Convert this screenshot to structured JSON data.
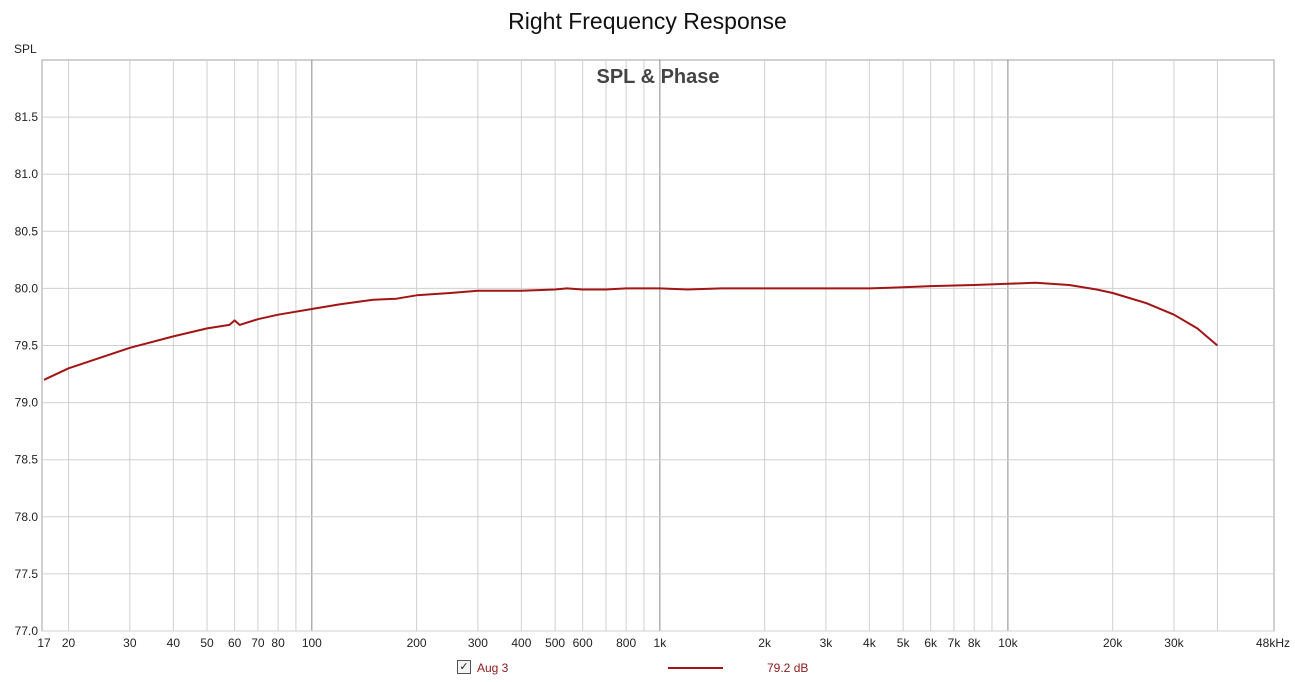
{
  "page_title": "Right Frequency Response",
  "y_unit": "SPL",
  "legend": {
    "checked": true,
    "check_glyph": "✓",
    "name": "Aug 3",
    "value_text": "79.2 dB"
  },
  "colors": {
    "trace": "#a31515",
    "grid_minor": "#d0d0d0",
    "grid_major": "#8a8a8a",
    "frame": "#a0a0a0"
  },
  "chart_data": {
    "type": "line",
    "title": "SPL & Phase",
    "x_scale": "log",
    "x_range_hz": [
      17,
      48000
    ],
    "y_range": [
      77.0,
      82.0
    ],
    "x_ticks": [
      {
        "hz": 17,
        "label": "17"
      },
      {
        "hz": 20,
        "label": "20"
      },
      {
        "hz": 30,
        "label": "30"
      },
      {
        "hz": 40,
        "label": "40"
      },
      {
        "hz": 50,
        "label": "50"
      },
      {
        "hz": 60,
        "label": "60"
      },
      {
        "hz": 70,
        "label": "70"
      },
      {
        "hz": 80,
        "label": "80"
      },
      {
        "hz": 100,
        "label": "100"
      },
      {
        "hz": 200,
        "label": "200"
      },
      {
        "hz": 300,
        "label": "300"
      },
      {
        "hz": 400,
        "label": "400"
      },
      {
        "hz": 500,
        "label": "500"
      },
      {
        "hz": 600,
        "label": "600"
      },
      {
        "hz": 800,
        "label": "800"
      },
      {
        "hz": 1000,
        "label": "1k"
      },
      {
        "hz": 2000,
        "label": "2k"
      },
      {
        "hz": 3000,
        "label": "3k"
      },
      {
        "hz": 4000,
        "label": "4k"
      },
      {
        "hz": 5000,
        "label": "5k"
      },
      {
        "hz": 6000,
        "label": "6k"
      },
      {
        "hz": 7000,
        "label": "7k"
      },
      {
        "hz": 8000,
        "label": "8k"
      },
      {
        "hz": 10000,
        "label": "10k"
      },
      {
        "hz": 20000,
        "label": "20k"
      },
      {
        "hz": 30000,
        "label": "30k"
      },
      {
        "hz": 48000,
        "label": "48kHz"
      }
    ],
    "y_ticks": [
      "77.0",
      "77.5",
      "78.0",
      "78.5",
      "79.0",
      "79.5",
      "80.0",
      "80.5",
      "81.0",
      "81.5"
    ],
    "major_gridlines_hz": [
      100,
      1000,
      10000
    ],
    "grid": true,
    "series": [
      {
        "name": "Aug 3",
        "color": "#a31515",
        "x": [
          17,
          20,
          30,
          40,
          50,
          58,
          60,
          62,
          70,
          80,
          100,
          120,
          150,
          175,
          200,
          250,
          300,
          400,
          500,
          540,
          600,
          650,
          700,
          800,
          900,
          1000,
          1200,
          1500,
          2000,
          3000,
          4000,
          5000,
          6000,
          8000,
          10000,
          12000,
          15000,
          18000,
          20000,
          25000,
          30000,
          35000,
          40000
        ],
        "values": [
          79.2,
          79.3,
          79.48,
          79.58,
          79.65,
          79.68,
          79.72,
          79.68,
          79.73,
          79.77,
          79.82,
          79.86,
          79.9,
          79.91,
          79.94,
          79.96,
          79.98,
          79.98,
          79.99,
          80.0,
          79.99,
          79.99,
          79.99,
          80.0,
          80.0,
          80.0,
          79.99,
          80.0,
          80.0,
          80.0,
          80.0,
          80.01,
          80.02,
          80.03,
          80.04,
          80.05,
          80.03,
          79.99,
          79.96,
          79.87,
          79.77,
          79.65,
          79.5
        ]
      }
    ]
  }
}
